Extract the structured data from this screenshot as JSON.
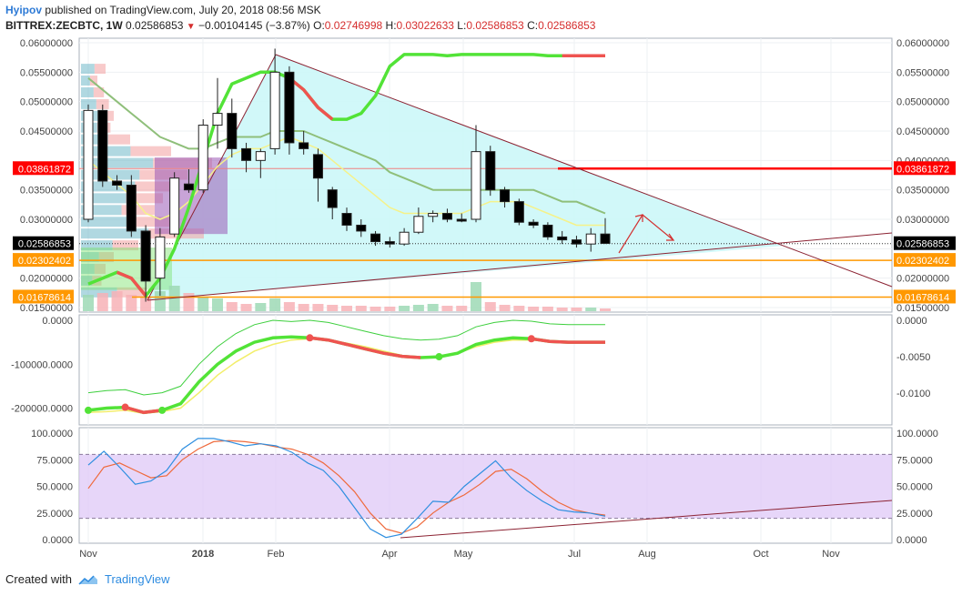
{
  "header": {
    "author": "Hyipov",
    "published_text": "published on TradingView.com, July 20, 2018 08:56 MSK",
    "symbol": "BITTREX:ZECBTC, 1W",
    "last": "0.02586853",
    "change": "−0.00104145 (−3.87%)",
    "o_label": "O:",
    "o": "0.02746998",
    "h_label": "H:",
    "h": "0.03022633",
    "l_label": "L:",
    "l": "0.02586853",
    "c_label": "C:",
    "c": "0.02586853"
  },
  "footer": {
    "created_with": "Created with",
    "brand": "TradingView"
  },
  "colors": {
    "bull_candle": "#ffffff",
    "bear_candle": "#000000",
    "wedge_fill": "#ccf7f8",
    "trend_line": "#8b2232",
    "resistance": "#ff0000",
    "support": "#ff9800",
    "ma_fast": "#f5f28a",
    "ma_slow": "#8fbf7a",
    "upper_band_up": "#52e337",
    "upper_band_down": "#ef5350",
    "stoch_band": "#dfc8f7",
    "stoch_k": "#2f8fe0",
    "stoch_d": "#ef6a3c",
    "last_price_tag": "#000000",
    "resistance_tag": "#ff0000",
    "support_tag": "#ff9800"
  },
  "x_axis": {
    "labels": [
      "Nov",
      "2018",
      "Feb",
      "Apr",
      "May",
      "Jul",
      "Aug",
      "Oct",
      "Nov"
    ]
  },
  "price_panel": {
    "left_ticks": [
      "0.06000000",
      "0.05500000",
      "0.05000000",
      "0.04500000",
      "0.03500000",
      "0.03000000",
      "0.02000000",
      "0.01500000"
    ],
    "right_ticks": [
      "0.06000000",
      "0.05500000",
      "0.05000000",
      "0.04500000",
      "0.04000000",
      "0.03500000",
      "0.03000000",
      "0.02000000",
      "0.01500000"
    ],
    "tags": [
      {
        "text": "0.03861872",
        "kind": "resistance",
        "value": 0.03861872
      },
      {
        "text": "0.02586853",
        "kind": "last",
        "value": 0.02586853
      },
      {
        "text": "0.02302402",
        "kind": "support",
        "value": 0.02302402
      },
      {
        "text": "0.01678614",
        "kind": "support",
        "value": 0.01678614
      }
    ]
  },
  "osc_panel": {
    "left_ticks": [
      "0.0000",
      "-100000.0000",
      "-200000.0000"
    ],
    "right_ticks": [
      "0.0000",
      "-0.0050",
      "-0.0100"
    ]
  },
  "stoch_panel": {
    "left_ticks": [
      "100.0000",
      "75.0000",
      "50.0000",
      "25.0000",
      "0.0000"
    ],
    "right_ticks": [
      "100.0000",
      "75.0000",
      "50.0000",
      "25.0000",
      "0.0000"
    ],
    "band": [
      20,
      80
    ]
  },
  "chart_data": [
    {
      "type": "candlestick",
      "ylim": [
        0.015,
        0.06
      ],
      "candles": [
        {
          "o": 0.03,
          "h": 0.0495,
          "l": 0.0295,
          "c": 0.0485
        },
        {
          "o": 0.0485,
          "h": 0.0495,
          "l": 0.0355,
          "c": 0.0365
        },
        {
          "o": 0.0365,
          "h": 0.0375,
          "l": 0.035,
          "c": 0.0358
        },
        {
          "o": 0.0358,
          "h": 0.0375,
          "l": 0.027,
          "c": 0.028
        },
        {
          "o": 0.028,
          "h": 0.029,
          "l": 0.016,
          "c": 0.0195
        },
        {
          "o": 0.02,
          "h": 0.0285,
          "l": 0.017,
          "c": 0.027
        },
        {
          "o": 0.0275,
          "h": 0.038,
          "l": 0.027,
          "c": 0.037
        },
        {
          "o": 0.036,
          "h": 0.0385,
          "l": 0.0345,
          "c": 0.035
        },
        {
          "o": 0.035,
          "h": 0.047,
          "l": 0.0345,
          "c": 0.046
        },
        {
          "o": 0.046,
          "h": 0.054,
          "l": 0.042,
          "c": 0.048
        },
        {
          "o": 0.048,
          "h": 0.0505,
          "l": 0.0405,
          "c": 0.042
        },
        {
          "o": 0.042,
          "h": 0.043,
          "l": 0.038,
          "c": 0.04
        },
        {
          "o": 0.04,
          "h": 0.042,
          "l": 0.037,
          "c": 0.0415
        },
        {
          "o": 0.042,
          "h": 0.059,
          "l": 0.041,
          "c": 0.055
        },
        {
          "o": 0.055,
          "h": 0.056,
          "l": 0.041,
          "c": 0.043
        },
        {
          "o": 0.043,
          "h": 0.045,
          "l": 0.041,
          "c": 0.042
        },
        {
          "o": 0.041,
          "h": 0.042,
          "l": 0.033,
          "c": 0.037
        },
        {
          "o": 0.035,
          "h": 0.0355,
          "l": 0.03,
          "c": 0.032
        },
        {
          "o": 0.031,
          "h": 0.032,
          "l": 0.028,
          "c": 0.029
        },
        {
          "o": 0.029,
          "h": 0.03,
          "l": 0.027,
          "c": 0.028
        },
        {
          "o": 0.0275,
          "h": 0.028,
          "l": 0.0255,
          "c": 0.0262
        },
        {
          "o": 0.0262,
          "h": 0.027,
          "l": 0.0252,
          "c": 0.0258
        },
        {
          "o": 0.0258,
          "h": 0.0285,
          "l": 0.0255,
          "c": 0.0278
        },
        {
          "o": 0.0278,
          "h": 0.032,
          "l": 0.0275,
          "c": 0.0305
        },
        {
          "o": 0.0305,
          "h": 0.0315,
          "l": 0.0295,
          "c": 0.031
        },
        {
          "o": 0.031,
          "h": 0.0318,
          "l": 0.0295,
          "c": 0.03
        },
        {
          "o": 0.03,
          "h": 0.031,
          "l": 0.0295,
          "c": 0.0298
        },
        {
          "o": 0.03,
          "h": 0.046,
          "l": 0.0295,
          "c": 0.0415
        },
        {
          "o": 0.0415,
          "h": 0.0425,
          "l": 0.034,
          "c": 0.035
        },
        {
          "o": 0.035,
          "h": 0.0355,
          "l": 0.032,
          "c": 0.033
        },
        {
          "o": 0.033,
          "h": 0.0335,
          "l": 0.029,
          "c": 0.0295
        },
        {
          "o": 0.0295,
          "h": 0.03,
          "l": 0.0285,
          "c": 0.029
        },
        {
          "o": 0.029,
          "h": 0.0295,
          "l": 0.0265,
          "c": 0.027
        },
        {
          "o": 0.027,
          "h": 0.028,
          "l": 0.0258,
          "c": 0.0265
        },
        {
          "o": 0.0265,
          "h": 0.0272,
          "l": 0.0252,
          "c": 0.0258
        },
        {
          "o": 0.0258,
          "h": 0.0285,
          "l": 0.0245,
          "c": 0.0275
        },
        {
          "o": 0.0275,
          "h": 0.0302,
          "l": 0.0258,
          "c": 0.0259
        }
      ],
      "ma_fast": [
        0.04,
        0.038,
        0.036,
        0.034,
        0.031,
        0.03,
        0.031,
        0.033,
        0.036,
        0.039,
        0.041,
        0.042,
        0.042,
        0.043,
        0.044,
        0.043,
        0.042,
        0.04,
        0.038,
        0.036,
        0.034,
        0.032,
        0.031,
        0.031,
        0.031,
        0.031,
        0.031,
        0.032,
        0.033,
        0.033,
        0.033,
        0.032,
        0.031,
        0.03,
        0.029,
        0.029,
        0.029
      ],
      "ma_slow": [
        0.054,
        0.052,
        0.05,
        0.048,
        0.046,
        0.044,
        0.043,
        0.042,
        0.042,
        0.043,
        0.044,
        0.044,
        0.044,
        0.045,
        0.045,
        0.045,
        0.044,
        0.043,
        0.042,
        0.041,
        0.04,
        0.038,
        0.037,
        0.036,
        0.035,
        0.035,
        0.035,
        0.035,
        0.035,
        0.035,
        0.035,
        0.035,
        0.034,
        0.033,
        0.033,
        0.032,
        0.031
      ],
      "upper_band": [
        0.019,
        0.02,
        0.021,
        0.02,
        0.017,
        0.02,
        0.025,
        0.032,
        0.04,
        0.048,
        0.053,
        0.054,
        0.055,
        0.055,
        0.054,
        0.052,
        0.049,
        0.047,
        0.047,
        0.048,
        0.051,
        0.056,
        0.058,
        0.058,
        0.058,
        0.0578,
        0.058,
        0.058,
        0.058,
        0.058,
        0.058,
        0.058,
        0.0578,
        0.0578,
        0.0578,
        0.0578,
        0.0578
      ]
    },
    {
      "type": "line",
      "ylim": [
        -230000,
        0
      ],
      "series": [
        {
          "values": [
            -205000,
            -200000,
            -198000,
            -210000,
            -205000,
            -190000,
            -140000,
            -100000,
            -70000,
            -50000,
            -40000,
            -38000,
            -40000,
            -45000,
            -55000,
            -65000,
            -75000,
            -82000,
            -85000,
            -83000,
            -75000,
            -55000,
            -45000,
            -40000,
            -42000,
            -48000,
            -50000,
            -50000,
            -50000
          ]
        },
        {
          "values": [
            -210000,
            -208000,
            -205000,
            -212000,
            -208000,
            -200000,
            -165000,
            -125000,
            -95000,
            -70000,
            -55000,
            -45000,
            -42000,
            -45000,
            -52000,
            -60000,
            -70000,
            -80000,
            -85000,
            -83000,
            -75000,
            -60000,
            -50000,
            -45000,
            -45000,
            -48000,
            -50000,
            -50000,
            -50000
          ]
        }
      ]
    },
    {
      "type": "line",
      "ylim": [
        0,
        100
      ],
      "series": [
        {
          "values": [
            70,
            83,
            68,
            52,
            55,
            65,
            85,
            95,
            95,
            92,
            88,
            90,
            88,
            82,
            72,
            65,
            50,
            30,
            10,
            2,
            5,
            20,
            36,
            35,
            50,
            62,
            74,
            58,
            46,
            36,
            28,
            26,
            25,
            22
          ]
        },
        {
          "values": [
            48,
            68,
            72,
            65,
            58,
            60,
            75,
            85,
            92,
            93,
            92,
            90,
            87,
            85,
            80,
            72,
            60,
            45,
            25,
            10,
            6,
            12,
            25,
            35,
            42,
            52,
            64,
            66,
            57,
            45,
            35,
            28,
            25,
            23
          ]
        }
      ]
    }
  ]
}
